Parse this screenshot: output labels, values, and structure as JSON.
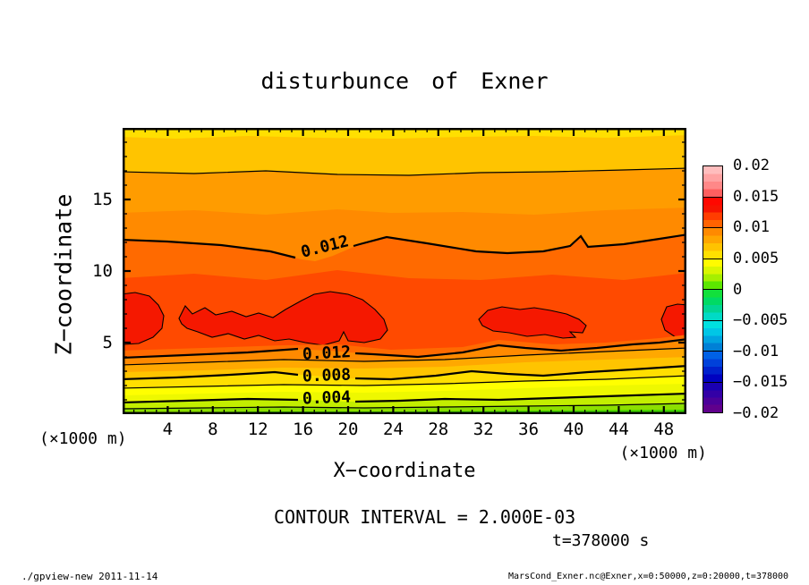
{
  "figure": {
    "title": "disturbunce of Exner",
    "x_unit_left": "(×1000 m)",
    "x_unit_right": "(×1000 m)",
    "contour_interval_text": "CONTOUR INTERVAL = 2.000E-03",
    "time_text": "t=378000 s",
    "footer_left": "./gpview-new  2011-11-14",
    "footer_right": "MarsCond_Exner.nc@Exner,x=0:50000,z=0:20000,t=378000"
  },
  "chart_data": {
    "type": "heatmap",
    "subtype": "filled contour x-z cross-section (GTOOL/gpview style)",
    "title": "disturbunce of Exner",
    "xlabel": "X−coordinate",
    "ylabel": "Z−coordinate",
    "x_range_m": [
      0,
      50000
    ],
    "z_range_m": [
      0,
      20000
    ],
    "axis_scale_note": "(×1000 m)",
    "x_tick_labels": [
      "4",
      "8",
      "12",
      "16",
      "20",
      "24",
      "28",
      "32",
      "36",
      "40",
      "44",
      "48"
    ],
    "y_tick_labels": [
      "5",
      "10",
      "15"
    ],
    "x_minor_tick_step_km": 1,
    "y_minor_tick_step_km": 1,
    "grid": false,
    "time_s": 378000,
    "contour_interval": 0.002,
    "labeled_contours": [
      0.012,
      0.008,
      0.004
    ],
    "contour_labels": {
      "upper": "0.012",
      "lower": [
        "0.012",
        "0.008",
        "0.004"
      ]
    },
    "colorbar": {
      "min": -0.02,
      "max": 0.02,
      "position": "right",
      "tick_labels": [
        "0.02",
        "0.015",
        "0.01",
        "0.005",
        "0",
        "−0.005",
        "−0.01",
        "−0.015",
        "−0.02"
      ],
      "segments_top_to_bottom": [
        [
          "#ffbdbd",
          "#ffa2a2",
          "#ff8888",
          "#ff5f5f"
        ],
        [
          "#ff0800",
          "#f61300",
          "#ff3d00",
          "#ff6300"
        ],
        [
          "#ff8a00",
          "#ffa600",
          "#ffc300",
          "#ffe000"
        ],
        [
          "#fffb00",
          "#d9f600",
          "#a6ef00",
          "#5ce600"
        ],
        [
          "#12e03c",
          "#00da64",
          "#00d594",
          "#00dac6"
        ],
        [
          "#00e0e0",
          "#00c6e6",
          "#00a3e0",
          "#0080d6"
        ],
        [
          "#0061e6",
          "#0041da",
          "#0021cc",
          "#0002c0"
        ],
        [
          "#1a00b2",
          "#3300a6",
          "#4b0099",
          "#60008c"
        ]
      ]
    },
    "band_colors": [
      "#ffdf00",
      "#ffc400",
      "#ff9c00",
      "#ff8a00",
      "#ff6a00",
      "#ff4a00",
      "#ff6a00",
      "#ff8a00",
      "#ffa800",
      "#ffc400",
      "#ffdf00",
      "#ffff00",
      "#eef800",
      "#c3ee00",
      "#8cdf00",
      "#3fd200"
    ],
    "blob_color": "#f51800",
    "vertical_profile": {
      "description": "approximate horizontally-averaged Exner disturbance vs height read from the fill bands",
      "z_km": [
        0.3,
        1,
        2,
        3,
        3.5,
        4.2,
        4.7,
        6.5,
        9,
        12.3,
        15,
        17,
        19.5
      ],
      "value": [
        0.001,
        0.0025,
        0.004,
        0.006,
        0.008,
        0.01,
        0.012,
        0.0145,
        0.013,
        0.012,
        0.011,
        0.01,
        0.009
      ]
    },
    "maxima_regions": {
      "description": "red closed-contour maxima (>0.014) at z ≈ 5.5–8.5 km, x ranges in km",
      "x_km": [
        [
          0,
          3.8
        ],
        [
          5,
          24
        ],
        [
          31.5,
          41.5
        ],
        [
          48,
          50
        ]
      ]
    }
  }
}
